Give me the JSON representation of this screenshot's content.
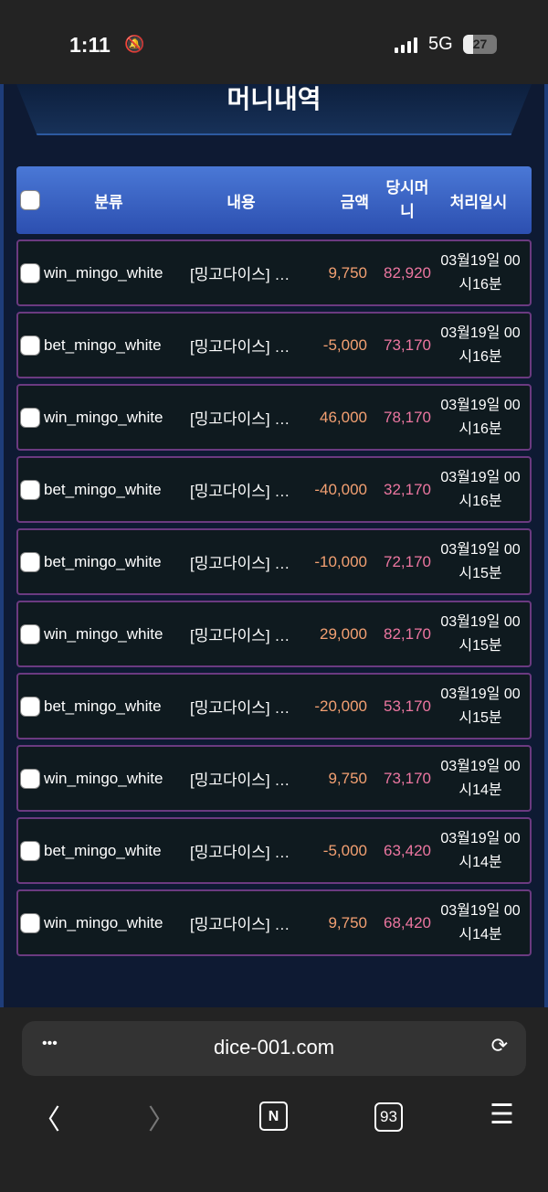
{
  "status": {
    "time": "1:11",
    "network": "5G",
    "battery": "27"
  },
  "page": {
    "title": "머니내역"
  },
  "table": {
    "headers": {
      "category": "분류",
      "content": "내용",
      "amount": "금액",
      "balance": "당시머니",
      "date": "처리일시"
    },
    "rows": [
      {
        "category": "win_mingo_white",
        "content": "[밍고다이스] …",
        "amount": "9,750",
        "balance": "82,920",
        "date": "03월19일 00시16분"
      },
      {
        "category": "bet_mingo_white",
        "content": "[밍고다이스] …",
        "amount": "-5,000",
        "balance": "73,170",
        "date": "03월19일 00시16분"
      },
      {
        "category": "win_mingo_white",
        "content": "[밍고다이스] …",
        "amount": "46,000",
        "balance": "78,170",
        "date": "03월19일 00시16분"
      },
      {
        "category": "bet_mingo_white",
        "content": "[밍고다이스] …",
        "amount": "-40,000",
        "balance": "32,170",
        "date": "03월19일 00시16분"
      },
      {
        "category": "bet_mingo_white",
        "content": "[밍고다이스] …",
        "amount": "-10,000",
        "balance": "72,170",
        "date": "03월19일 00시15분"
      },
      {
        "category": "win_mingo_white",
        "content": "[밍고다이스] …",
        "amount": "29,000",
        "balance": "82,170",
        "date": "03월19일 00시15분"
      },
      {
        "category": "bet_mingo_white",
        "content": "[밍고다이스] …",
        "amount": "-20,000",
        "balance": "53,170",
        "date": "03월19일 00시15분"
      },
      {
        "category": "win_mingo_white",
        "content": "[밍고다이스] …",
        "amount": "9,750",
        "balance": "73,170",
        "date": "03월19일 00시14분"
      },
      {
        "category": "bet_mingo_white",
        "content": "[밍고다이스] …",
        "amount": "-5,000",
        "balance": "63,420",
        "date": "03월19일 00시14분"
      },
      {
        "category": "win_mingo_white",
        "content": "[밍고다이스] …",
        "amount": "9,750",
        "balance": "68,420",
        "date": "03월19일 00시14분"
      }
    ]
  },
  "browser": {
    "url": "dice-001.com",
    "tab_count": "93",
    "home_label": "N"
  },
  "colors": {
    "amount": "#f3a072",
    "balance": "#ec76a0",
    "header": "#3a62c4",
    "row_border": "#6b3a80"
  }
}
